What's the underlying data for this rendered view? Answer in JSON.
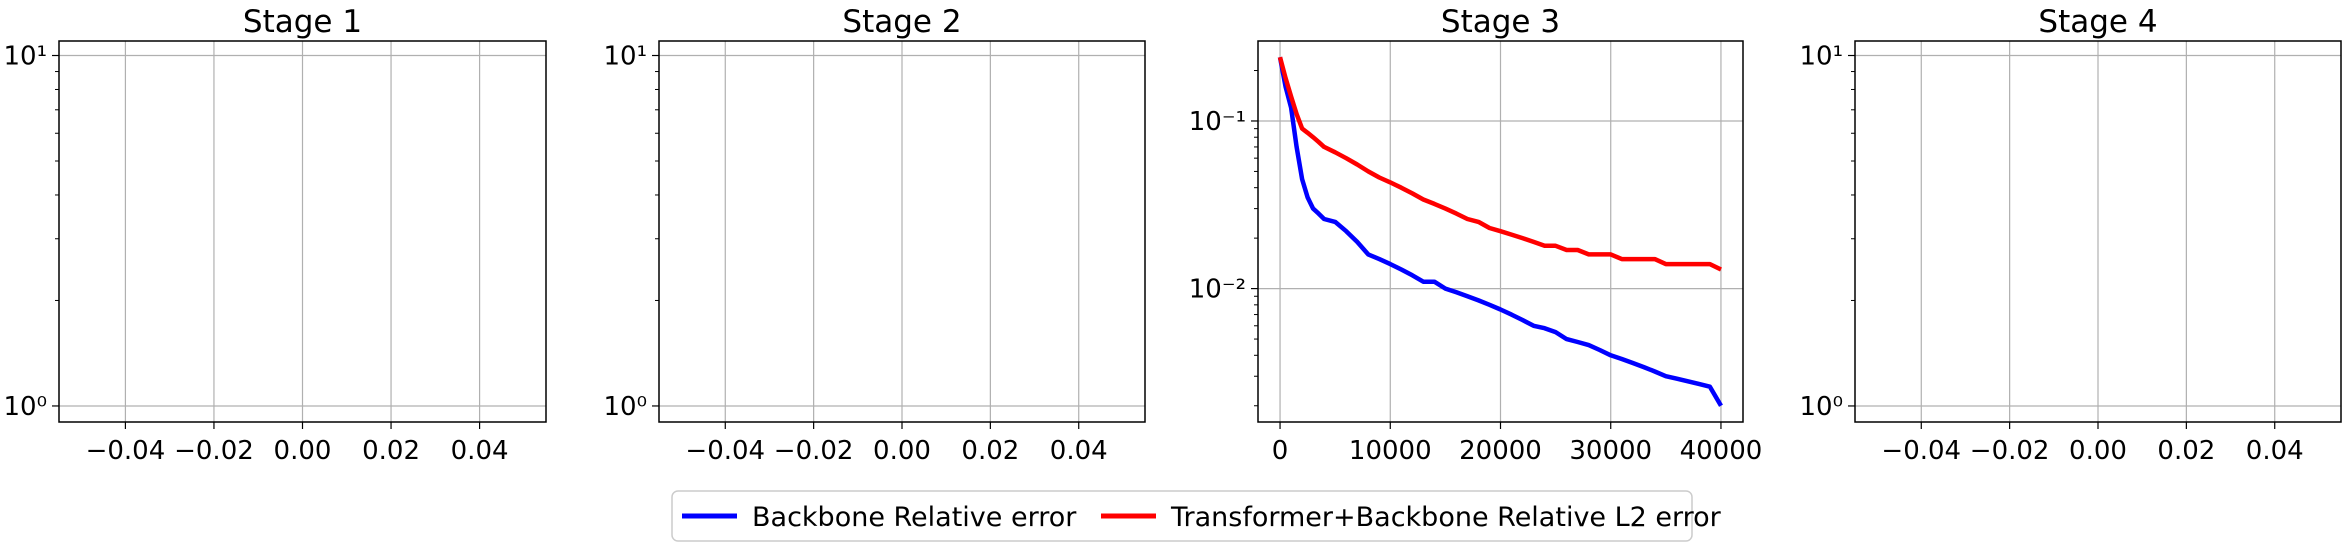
{
  "chart_data": [
    {
      "type": "line",
      "title": "Stage 1",
      "yscale": "log",
      "xlim": [
        -0.055,
        0.055
      ],
      "ylim": [
        0.9,
        11
      ],
      "xticks": [
        -0.04,
        -0.02,
        0.0,
        0.02,
        0.04
      ],
      "xtick_labels": [
        "−0.04",
        "−0.02",
        "0.00",
        "0.02",
        "0.04"
      ],
      "yticks_major": [
        1,
        10
      ],
      "grid": true,
      "series": []
    },
    {
      "type": "line",
      "title": "Stage 2",
      "yscale": "log",
      "xlim": [
        -0.055,
        0.055
      ],
      "ylim": [
        0.9,
        11
      ],
      "xticks": [
        -0.04,
        -0.02,
        0.0,
        0.02,
        0.04
      ],
      "xtick_labels": [
        "−0.04",
        "−0.02",
        "0.00",
        "0.02",
        "0.04"
      ],
      "yticks_major": [
        1,
        10
      ],
      "grid": true,
      "series": []
    },
    {
      "type": "line",
      "title": "Stage 3",
      "yscale": "log",
      "xlim": [
        -2000,
        42000
      ],
      "ylim": [
        0.0016,
        0.3
      ],
      "xticks": [
        0,
        10000,
        20000,
        30000,
        40000
      ],
      "xtick_labels": [
        "0",
        "10000",
        "20000",
        "30000",
        "40000"
      ],
      "yticks_major": [
        0.01,
        0.1
      ],
      "grid": true,
      "series": [
        {
          "name": "Backbone Relative error",
          "color": "#0000ff",
          "x": [
            0,
            500,
            1000,
            1500,
            2000,
            2500,
            3000,
            3500,
            4000,
            5000,
            6000,
            7000,
            8000,
            9000,
            10000,
            11000,
            12000,
            13000,
            14000,
            15000,
            16000,
            17000,
            18000,
            19000,
            20000,
            21000,
            22000,
            23000,
            24000,
            25000,
            26000,
            27000,
            28000,
            29000,
            30000,
            31000,
            32000,
            33000,
            34000,
            35000,
            36000,
            37000,
            38000,
            39000,
            40000
          ],
          "y": [
            0.24,
            0.16,
            0.12,
            0.07,
            0.045,
            0.035,
            0.03,
            0.028,
            0.026,
            0.025,
            0.022,
            0.019,
            0.016,
            0.015,
            0.014,
            0.013,
            0.012,
            0.011,
            0.011,
            0.01,
            0.0095,
            0.009,
            0.0085,
            0.008,
            0.0075,
            0.007,
            0.0065,
            0.006,
            0.0058,
            0.0055,
            0.005,
            0.0048,
            0.0046,
            0.0043,
            0.004,
            0.0038,
            0.0036,
            0.0034,
            0.0032,
            0.003,
            0.0029,
            0.0028,
            0.0027,
            0.0026,
            0.002
          ]
        },
        {
          "name": "Transformer+Backbone Relative L2 error",
          "color": "#ff0000",
          "x": [
            0,
            500,
            1000,
            1500,
            2000,
            2500,
            3000,
            3500,
            4000,
            5000,
            6000,
            7000,
            8000,
            9000,
            10000,
            11000,
            12000,
            13000,
            14000,
            15000,
            16000,
            17000,
            18000,
            19000,
            20000,
            21000,
            22000,
            23000,
            24000,
            25000,
            26000,
            27000,
            28000,
            29000,
            30000,
            31000,
            32000,
            33000,
            34000,
            35000,
            36000,
            37000,
            38000,
            39000,
            40000
          ],
          "y": [
            0.24,
            0.18,
            0.14,
            0.11,
            0.09,
            0.085,
            0.08,
            0.075,
            0.07,
            0.065,
            0.06,
            0.055,
            0.05,
            0.046,
            0.043,
            0.04,
            0.037,
            0.034,
            0.032,
            0.03,
            0.028,
            0.026,
            0.025,
            0.023,
            0.022,
            0.021,
            0.02,
            0.019,
            0.018,
            0.018,
            0.017,
            0.017,
            0.016,
            0.016,
            0.016,
            0.015,
            0.015,
            0.015,
            0.015,
            0.014,
            0.014,
            0.014,
            0.014,
            0.014,
            0.013
          ]
        }
      ]
    },
    {
      "type": "line",
      "title": "Stage 4",
      "yscale": "log",
      "xlim": [
        -0.055,
        0.055
      ],
      "ylim": [
        0.9,
        11
      ],
      "xticks": [
        -0.04,
        -0.02,
        0.0,
        0.02,
        0.04
      ],
      "xtick_labels": [
        "−0.04",
        "−0.02",
        "0.00",
        "0.02",
        "0.04"
      ],
      "yticks_major": [
        1,
        10
      ],
      "grid": true,
      "series": []
    }
  ],
  "legend": {
    "placement": "bottom-center",
    "items": [
      {
        "label": "Backbone Relative error",
        "color": "#0000ff"
      },
      {
        "label": "Transformer+Backbone Relative L2 error",
        "color": "#ff0000"
      }
    ]
  }
}
